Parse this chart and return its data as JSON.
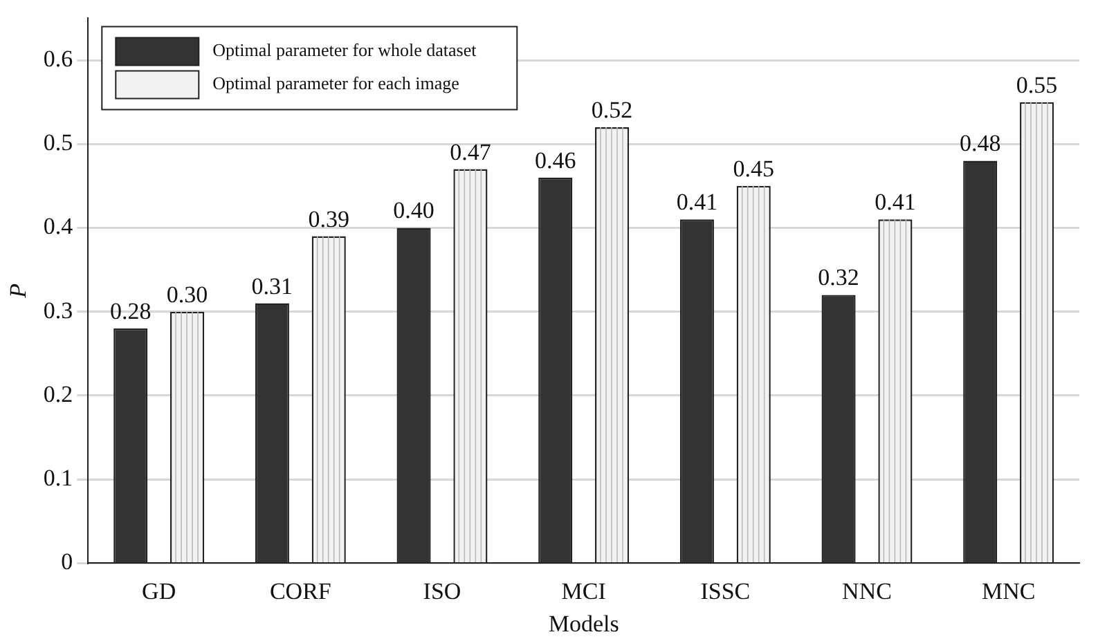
{
  "chart_data": {
    "type": "bar",
    "xlabel": "Models",
    "ylabel": "P",
    "categories": [
      "GD",
      "CORF",
      "ISO",
      "MCI",
      "ISSC",
      "NNC",
      "MNC"
    ],
    "series": [
      {
        "name": "Optimal parameter for whole dataset",
        "color": "#333333",
        "values": [
          0.28,
          0.31,
          0.4,
          0.46,
          0.41,
          0.32,
          0.48
        ],
        "value_labels": [
          "0.28",
          "0.31",
          "0.40",
          "0.46",
          "0.41",
          "0.32",
          "0.48"
        ]
      },
      {
        "name": "Optimal parameter for each image",
        "color": "#f2f2f2",
        "values": [
          0.3,
          0.39,
          0.47,
          0.52,
          0.45,
          0.41,
          0.55
        ],
        "value_labels": [
          "0.30",
          "0.39",
          "0.47",
          "0.52",
          "0.45",
          "0.41",
          "0.55"
        ]
      }
    ],
    "ylim": [
      0,
      0.65
    ],
    "yticks": [
      0,
      0.1,
      0.2,
      0.3,
      0.4,
      0.5,
      0.6
    ],
    "grid": "y",
    "legend": "top left"
  }
}
